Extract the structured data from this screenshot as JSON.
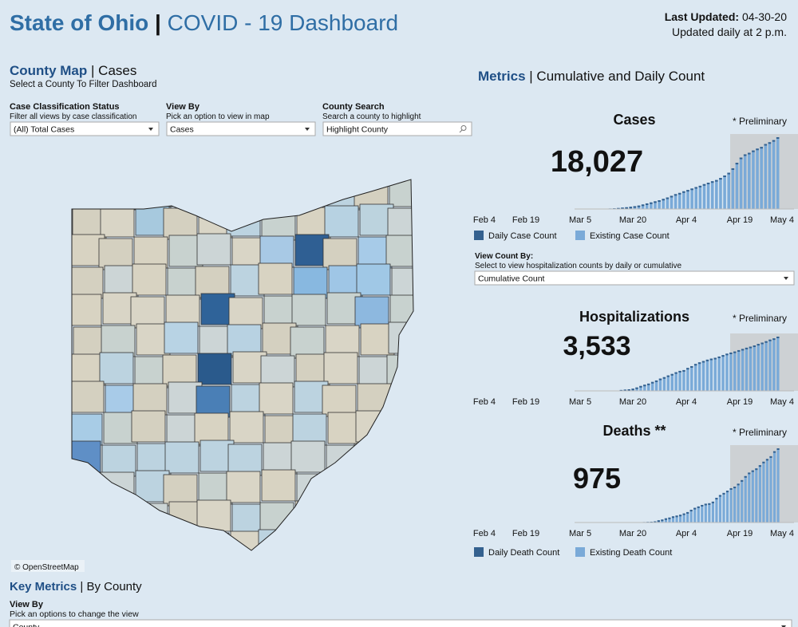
{
  "header": {
    "title": "State of Ohio",
    "separator": "|",
    "subtitle": "COVID - 19 Dashboard",
    "last_updated_label": "Last Updated:",
    "last_updated": "04-30-20",
    "update_note": "Updated daily at 2 p.m."
  },
  "county_map": {
    "title": "County Map",
    "separator": "|",
    "subtitle": "Cases",
    "instruction": "Select a County To Filter Dashboard",
    "filters": [
      {
        "label": "Case Classification Status",
        "hint": "Filter all views by case classification",
        "value": "(All) Total Cases"
      },
      {
        "label": "View By",
        "hint": "Pick an option to view in map",
        "value": "Cases"
      },
      {
        "label": "County Search",
        "hint": "Search a county to highlight",
        "value": "Highlight County"
      }
    ],
    "attribution": "© OpenStreetMap"
  },
  "metrics": {
    "title": "Metrics",
    "separator": "|",
    "subtitle": "Cumulative and Daily Count",
    "x_labels": [
      "Feb 4",
      "Feb 19",
      "Mar 5",
      "Mar 20",
      "Apr 4",
      "Apr 19",
      "May 4"
    ],
    "panels": [
      {
        "title": "Cases",
        "note": "* Preliminary",
        "total": "18,027",
        "values": [
          3,
          5,
          13,
          26,
          37,
          67,
          88,
          119,
          169,
          247,
          351,
          442,
          564,
          704,
          867,
          1137,
          1406,
          1653,
          1933,
          2199,
          2547,
          2902,
          3312,
          3739,
          4043,
          4450,
          4782,
          5148,
          5512,
          5836,
          6250,
          6604,
          6975,
          7280,
          7794,
          8414,
          9107,
          10222,
          11602,
          12919,
          13725,
          14117,
          14694,
          15169,
          15587,
          16325,
          16769,
          17303,
          18027
        ],
        "legend": [
          "Daily Case Count",
          "Existing Case Count"
        ]
      },
      {
        "title": "Hospitalizations",
        "note": "* Preliminary",
        "total": "3,533",
        "values": [
          1,
          4,
          11,
          26,
          58,
          83,
          104,
          145,
          223,
          321,
          402,
          475,
          585,
          679,
          802,
          895,
          1006,
          1104,
          1214,
          1303,
          1354,
          1495,
          1612,
          1755,
          1859,
          1948,
          2033,
          2103,
          2156,
          2237,
          2331,
          2425,
          2496,
          2565,
          2653,
          2733,
          2812,
          2882,
          2960,
          3059,
          3145,
          3237,
          3340,
          3421,
          3533
        ]
      },
      {
        "title": "Deaths **",
        "note": "* Preliminary",
        "total": "975",
        "values": [
          1,
          2,
          3,
          6,
          8,
          10,
          15,
          29,
          39,
          55,
          65,
          81,
          91,
          102,
          119,
          137,
          167,
          193,
          211,
          231,
          247,
          253,
          274,
          324,
          361,
          389,
          418,
          451,
          471,
          510,
          557,
          610,
          656,
          685,
          711,
          753,
          799,
          835,
          871,
          937,
          975
        ],
        "legend": [
          "Daily Death Count",
          "Existing Death Count"
        ]
      }
    ],
    "view_count": {
      "label": "View Count By:",
      "hint": "Select to view hospitalization counts by daily or cumulative",
      "value": "Cumulative Count"
    }
  },
  "key_metrics": {
    "title": "Key Metrics",
    "separator": "|",
    "subtitle": "By County",
    "view_by": {
      "label": "View By",
      "hint": "Pick an options to change the view",
      "value": "County"
    }
  }
}
